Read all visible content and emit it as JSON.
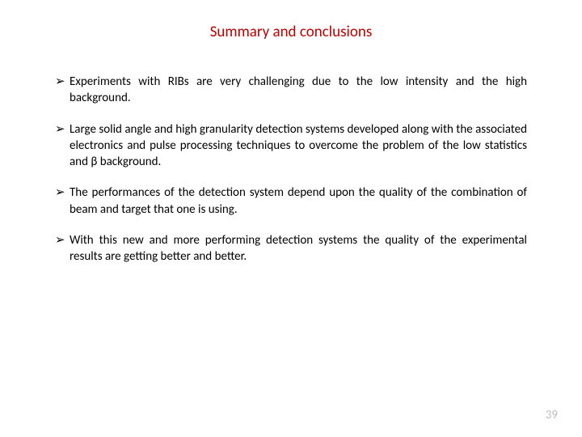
{
  "slide": {
    "title": "Summary and conclusions",
    "title_color": "#c00000",
    "title_fontsize": 19,
    "bullet_marker": "➢",
    "bullets": [
      "Experiments with RIBs are very challenging due to the low intensity and the high background.",
      "Large solid angle and high granularity detection systems developed along with the associated electronics and pulse processing techniques to overcome the problem of the low statistics and β background.",
      "The performances of the detection system depend upon the quality of the combination of beam and target that one is using.",
      "With this new and more performing detection systems the quality of the experimental results are getting better and better."
    ],
    "body_fontsize": 15,
    "body_color": "#000000",
    "page_number": "39",
    "page_number_color": "#bfbfbf",
    "background_color": "#ffffff"
  }
}
